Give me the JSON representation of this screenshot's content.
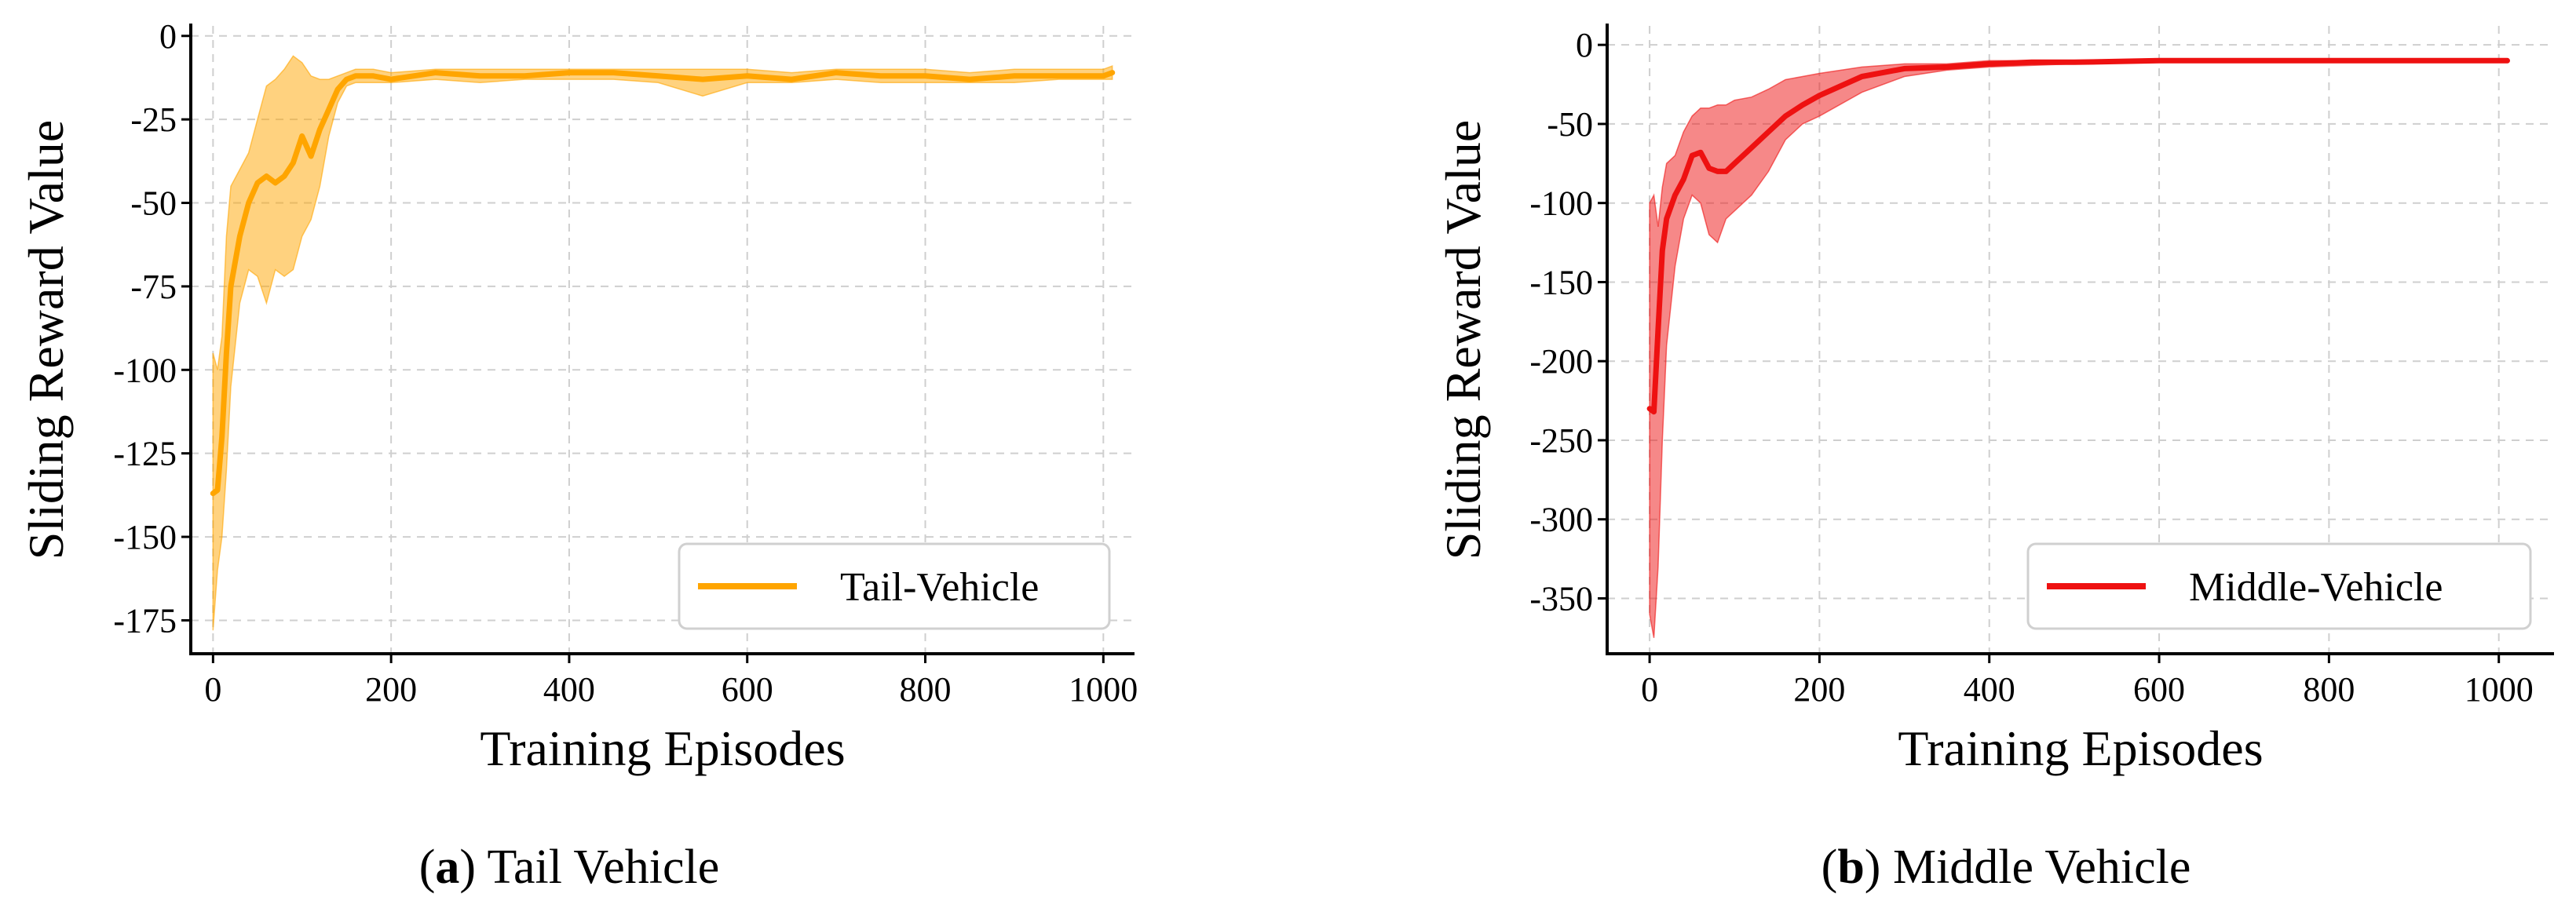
{
  "chart_data": [
    {
      "type": "line",
      "ylabel": "Sliding Reward Value",
      "xlabel": "Training Episodes",
      "xlim": [
        -25,
        1035
      ],
      "ylim": [
        -185,
        3
      ],
      "xticks": [
        0,
        200,
        400,
        600,
        800,
        1000
      ],
      "yticks": [
        0,
        -25,
        -50,
        -75,
        -100,
        -125,
        -150,
        -175
      ],
      "grid": true,
      "legend_position": "bottom-right",
      "caption": {
        "letter": "a",
        "text": "Tail Vehicle"
      },
      "series": [
        {
          "name": "Tail-Vehicle",
          "color": "#FFA500",
          "x": [
            0,
            5,
            10,
            15,
            20,
            30,
            40,
            50,
            60,
            70,
            80,
            90,
            100,
            110,
            120,
            130,
            140,
            150,
            160,
            180,
            200,
            250,
            300,
            350,
            400,
            450,
            500,
            550,
            600,
            650,
            700,
            750,
            800,
            850,
            900,
            950,
            1000,
            1010
          ],
          "y": [
            -137,
            -136,
            -120,
            -95,
            -75,
            -60,
            -50,
            -44,
            -42,
            -44,
            -42,
            -38,
            -30,
            -36,
            -28,
            -22,
            -16,
            -13,
            -12,
            -12,
            -13,
            -11,
            -12,
            -12,
            -11,
            -11,
            -12,
            -13,
            -12,
            -13,
            -11,
            -12,
            -12,
            -13,
            -12,
            -12,
            -12,
            -11
          ],
          "lower": [
            -178,
            -160,
            -150,
            -130,
            -105,
            -80,
            -70,
            -72,
            -80,
            -70,
            -72,
            -70,
            -60,
            -55,
            -45,
            -30,
            -20,
            -15,
            -14,
            -14,
            -14,
            -13,
            -14,
            -13,
            -13,
            -13,
            -14,
            -18,
            -14,
            -14,
            -13,
            -14,
            -14,
            -14,
            -14,
            -13,
            -13,
            -13
          ],
          "upper": [
            -95,
            -100,
            -90,
            -60,
            -45,
            -40,
            -35,
            -25,
            -15,
            -13,
            -10,
            -6,
            -8,
            -12,
            -13,
            -13,
            -12,
            -11,
            -10,
            -10,
            -11,
            -10,
            -10,
            -10,
            -10,
            -10,
            -10,
            -10,
            -10,
            -11,
            -10,
            -10,
            -10,
            -11,
            -10,
            -10,
            -10,
            -9
          ]
        }
      ]
    },
    {
      "type": "line",
      "ylabel": "Sliding Reward Value",
      "xlabel": "Training Episodes",
      "xlim": [
        -50,
        1065
      ],
      "ylim": [
        -385,
        12
      ],
      "xticks": [
        0,
        200,
        400,
        600,
        800,
        1000
      ],
      "yticks": [
        0,
        -50,
        -100,
        -150,
        -200,
        -250,
        -300,
        -350
      ],
      "grid": true,
      "legend_position": "bottom-right",
      "caption": {
        "letter": "b",
        "text": "Middle Vehicle"
      },
      "series": [
        {
          "name": "Middle-Vehicle",
          "color": "#EE1111",
          "x": [
            0,
            5,
            10,
            15,
            20,
            30,
            40,
            50,
            60,
            70,
            80,
            90,
            100,
            120,
            140,
            160,
            180,
            200,
            250,
            300,
            350,
            400,
            450,
            500,
            600,
            700,
            800,
            900,
            1000,
            1010
          ],
          "y": [
            -230,
            -232,
            -180,
            -130,
            -110,
            -95,
            -85,
            -70,
            -68,
            -78,
            -80,
            -80,
            -75,
            -65,
            -55,
            -45,
            -38,
            -32,
            -20,
            -15,
            -14,
            -12,
            -11,
            -11,
            -10,
            -10,
            -10,
            -10,
            -10,
            -10
          ],
          "lower": [
            -360,
            -375,
            -330,
            -250,
            -190,
            -140,
            -110,
            -95,
            -100,
            -120,
            -125,
            -110,
            -105,
            -95,
            -80,
            -60,
            -50,
            -45,
            -30,
            -20,
            -16,
            -14,
            -13,
            -12,
            -11,
            -11,
            -11,
            -11,
            -11,
            -11
          ],
          "upper": [
            -100,
            -95,
            -115,
            -90,
            -75,
            -70,
            -55,
            -45,
            -40,
            -40,
            -38,
            -38,
            -35,
            -33,
            -28,
            -22,
            -20,
            -18,
            -14,
            -12,
            -12,
            -10,
            -10,
            -10,
            -9,
            -9,
            -9,
            -9,
            -9,
            -9
          ]
        }
      ]
    }
  ]
}
